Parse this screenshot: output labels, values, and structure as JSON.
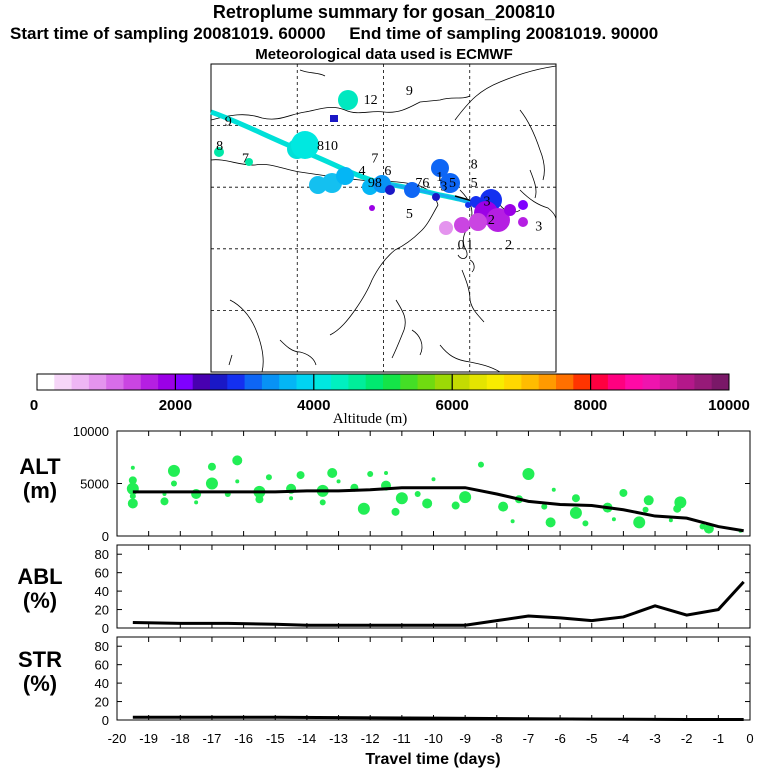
{
  "title": "Retroplume summary for gosan_200810",
  "sampling_line": "Start time of sampling 20081019. 60000     End time of sampling 20081019. 90000",
  "met_line": "Meteorological data used is ECMWF",
  "colorbar": {
    "label": "Altitude (m)",
    "ticks": [
      "0",
      "2000",
      "4000",
      "6000",
      "8000",
      "10000"
    ],
    "colors": [
      "#ffffff",
      "#f6d6f8",
      "#eeb6f4",
      "#e494ee",
      "#d86de9",
      "#ca45e2",
      "#b51fe2",
      "#9b00e6",
      "#7f00ff",
      "#4800b0",
      "#1a18c6",
      "#1430f0",
      "#0e66f5",
      "#0892f5",
      "#04b6f5",
      "#00d4f2",
      "#00e8e0",
      "#00f0c0",
      "#00ee9a",
      "#00e970",
      "#14e448",
      "#44de26",
      "#70db10",
      "#9cd906",
      "#c4da02",
      "#e4e400",
      "#f8ec00",
      "#ffd800",
      "#ffbc00",
      "#ff9a00",
      "#ff7000",
      "#ff3400",
      "#ff0040",
      "#ff0080",
      "#ff0aa6",
      "#ef14ae",
      "#d21a9c",
      "#b4188a",
      "#961a78",
      "#7a1868"
    ]
  },
  "map": {
    "labels": [
      {
        "t": "9",
        "lon": 74,
        "lat": 50
      },
      {
        "t": "8",
        "lon": 72,
        "lat": 46
      },
      {
        "t": "7",
        "lon": 78,
        "lat": 44
      },
      {
        "t": "810",
        "lon": 97,
        "lat": 46
      },
      {
        "t": "12",
        "lon": 107,
        "lat": 53.5
      },
      {
        "t": "9",
        "lon": 116,
        "lat": 55
      },
      {
        "t": "7",
        "lon": 108,
        "lat": 44
      },
      {
        "t": "4",
        "lon": 105,
        "lat": 42
      },
      {
        "t": "6",
        "lon": 111,
        "lat": 42
      },
      {
        "t": "98",
        "lon": 108,
        "lat": 40
      },
      {
        "t": "76",
        "lon": 119,
        "lat": 40
      },
      {
        "t": "1",
        "lon": 123,
        "lat": 41
      },
      {
        "t": "5",
        "lon": 126,
        "lat": 40
      },
      {
        "t": "3",
        "lon": 124,
        "lat": 39.5
      },
      {
        "t": "8",
        "lon": 131,
        "lat": 43
      },
      {
        "t": "5",
        "lon": 131,
        "lat": 40
      },
      {
        "t": "5",
        "lon": 116,
        "lat": 35
      },
      {
        "t": "3",
        "lon": 134,
        "lat": 37
      },
      {
        "t": "2",
        "lon": 135,
        "lat": 34
      },
      {
        "t": "0",
        "lon": 128,
        "lat": 30
      },
      {
        "t": "1",
        "lon": 130,
        "lat": 30
      },
      {
        "t": "2",
        "lon": 139,
        "lat": 30
      },
      {
        "t": "3",
        "lon": 146,
        "lat": 33
      }
    ]
  },
  "chart_data": [
    {
      "type": "line",
      "title": "ALT (m)",
      "ylabel": "ALT",
      "yunit": "(m)",
      "ylim": [
        0,
        10000
      ],
      "yticks": [
        "0",
        "5000",
        "10000"
      ],
      "x": [
        -19.5,
        -18,
        -16.5,
        -15,
        -14,
        -13,
        -12,
        -11,
        -10,
        -9,
        -8,
        -7,
        -6,
        -5,
        -4,
        -3,
        -2,
        -1,
        -0.2
      ],
      "values": [
        4200,
        4200,
        4200,
        4200,
        4300,
        4300,
        4400,
        4600,
        4600,
        4600,
        4000,
        3300,
        3000,
        2900,
        2500,
        1900,
        1700,
        900,
        500
      ],
      "scatter": [
        {
          "x": -19.5,
          "y": 6500
        },
        {
          "x": -19.5,
          "y": 5300
        },
        {
          "x": -19.5,
          "y": 4500
        },
        {
          "x": -19.5,
          "y": 3800
        },
        {
          "x": -19.5,
          "y": 3100
        },
        {
          "x": -18.5,
          "y": 4000
        },
        {
          "x": -18.5,
          "y": 3300
        },
        {
          "x": -18.2,
          "y": 6200
        },
        {
          "x": -18.2,
          "y": 5000
        },
        {
          "x": -17.5,
          "y": 4000
        },
        {
          "x": -17.5,
          "y": 3200
        },
        {
          "x": -17,
          "y": 6600
        },
        {
          "x": -17,
          "y": 5000
        },
        {
          "x": -16.5,
          "y": 4000
        },
        {
          "x": -16.2,
          "y": 7200
        },
        {
          "x": -16.2,
          "y": 5200
        },
        {
          "x": -15.5,
          "y": 3500
        },
        {
          "x": -15.5,
          "y": 4200
        },
        {
          "x": -15.2,
          "y": 5600
        },
        {
          "x": -14.5,
          "y": 4500
        },
        {
          "x": -14.5,
          "y": 3600
        },
        {
          "x": -14.2,
          "y": 5800
        },
        {
          "x": -13.5,
          "y": 4300
        },
        {
          "x": -13.5,
          "y": 3200
        },
        {
          "x": -13.2,
          "y": 6000
        },
        {
          "x": -13,
          "y": 5200
        },
        {
          "x": -12.5,
          "y": 4600
        },
        {
          "x": -12.2,
          "y": 2600
        },
        {
          "x": -12,
          "y": 5900
        },
        {
          "x": -11.5,
          "y": 4800
        },
        {
          "x": -11.5,
          "y": 6000
        },
        {
          "x": -11.2,
          "y": 2300
        },
        {
          "x": -11,
          "y": 3600
        },
        {
          "x": -10.5,
          "y": 4000
        },
        {
          "x": -10.2,
          "y": 3100
        },
        {
          "x": -10,
          "y": 5400
        },
        {
          "x": -9.3,
          "y": 2900
        },
        {
          "x": -9,
          "y": 3700
        },
        {
          "x": -8.5,
          "y": 6800
        },
        {
          "x": -7.8,
          "y": 2800
        },
        {
          "x": -7.5,
          "y": 1400
        },
        {
          "x": -7.3,
          "y": 3500
        },
        {
          "x": -7,
          "y": 5900
        },
        {
          "x": -6.5,
          "y": 2800
        },
        {
          "x": -6.3,
          "y": 1300
        },
        {
          "x": -6.2,
          "y": 4400
        },
        {
          "x": -5.5,
          "y": 3600
        },
        {
          "x": -5.5,
          "y": 2200
        },
        {
          "x": -5.2,
          "y": 1200
        },
        {
          "x": -4.5,
          "y": 2700
        },
        {
          "x": -4.3,
          "y": 1600
        },
        {
          "x": -4,
          "y": 4100
        },
        {
          "x": -3.5,
          "y": 1300
        },
        {
          "x": -3.3,
          "y": 2500
        },
        {
          "x": -3.2,
          "y": 3400
        },
        {
          "x": -2.5,
          "y": 1500
        },
        {
          "x": -2.3,
          "y": 2600
        },
        {
          "x": -2.2,
          "y": 3200
        },
        {
          "x": -1.5,
          "y": 900
        },
        {
          "x": -1.3,
          "y": 700
        },
        {
          "x": -0.3,
          "y": 500
        }
      ]
    },
    {
      "type": "line",
      "title": "ABL (%)",
      "ylabel": "ABL",
      "yunit": "(%)",
      "ylim": [
        0,
        90
      ],
      "yticks": [
        "0",
        "20",
        "40",
        "60",
        "80"
      ],
      "x": [
        -19.5,
        -18,
        -16.5,
        -15,
        -14,
        -13,
        -12,
        -11,
        -10,
        -9,
        -8,
        -7,
        -6,
        -5,
        -4,
        -3,
        -2,
        -1,
        -0.2
      ],
      "values": [
        6,
        5,
        5,
        4,
        3,
        3,
        3,
        3,
        3,
        3,
        8,
        13,
        11,
        8,
        12,
        24,
        14,
        20,
        50
      ]
    },
    {
      "type": "line",
      "title": "STR (%)",
      "ylabel": "STR",
      "yunit": "(%)",
      "ylim": [
        0,
        90
      ],
      "yticks": [
        "0",
        "20",
        "40",
        "60",
        "80"
      ],
      "x": [
        -19.5,
        -15,
        -10,
        -5,
        -2,
        -0.2
      ],
      "values": [
        3,
        3,
        2,
        1,
        0.5,
        0.5
      ]
    }
  ],
  "xaxis": {
    "label": "Travel time (days)",
    "ticks": [
      "-20",
      "-19",
      "-18",
      "-17",
      "-16",
      "-15",
      "-14",
      "-13",
      "-12",
      "-11",
      "-10",
      "-9",
      "-8",
      "-7",
      "-6",
      "-5",
      "-4",
      "-3",
      "-2",
      "-1",
      "0"
    ]
  }
}
